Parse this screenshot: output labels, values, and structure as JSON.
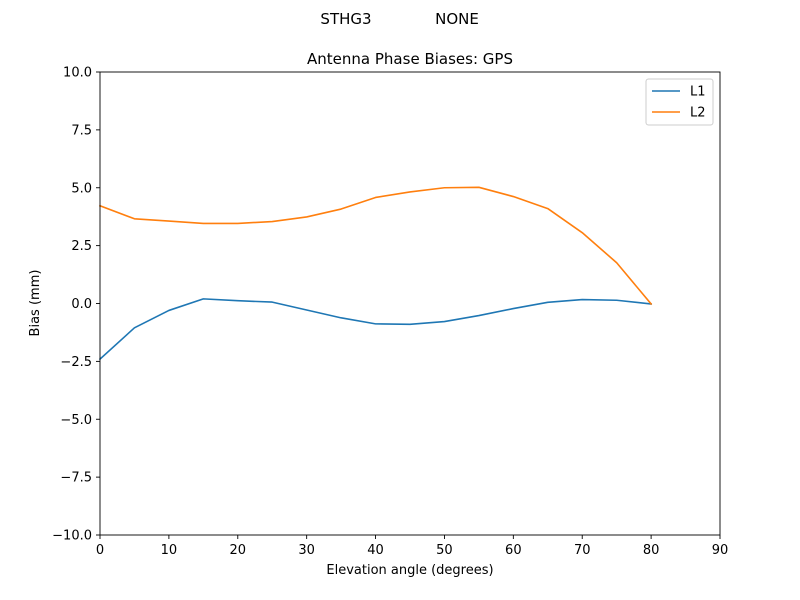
{
  "suptitle": {
    "station": "STHG3",
    "radome": "NONE"
  },
  "chart_data": {
    "type": "line",
    "title": "Antenna Phase Biases: GPS",
    "xlabel": "Elevation angle (degrees)",
    "ylabel": "Bias (mm)",
    "xlim": [
      0,
      90
    ],
    "ylim": [
      -10,
      10
    ],
    "xticks": [
      0,
      10,
      20,
      30,
      40,
      50,
      60,
      70,
      80,
      90
    ],
    "xtick_labels": [
      "0",
      "10",
      "20",
      "30",
      "40",
      "50",
      "60",
      "70",
      "80",
      "90"
    ],
    "yticks": [
      -10,
      -7.5,
      -5,
      -2.5,
      0,
      2.5,
      5,
      7.5,
      10
    ],
    "ytick_labels": [
      "−10.0",
      "−7.5",
      "−5.0",
      "−2.5",
      "0.0",
      "2.5",
      "5.0",
      "7.5",
      "10.0"
    ],
    "grid": false,
    "legend": "top-right",
    "x": [
      0,
      5,
      10,
      15,
      20,
      25,
      30,
      35,
      40,
      45,
      50,
      55,
      60,
      65,
      70,
      75,
      80
    ],
    "series": [
      {
        "name": "L1",
        "color": "#1f77b4",
        "values": [
          -2.4,
          -1.05,
          -0.3,
          0.2,
          0.12,
          0.06,
          -0.28,
          -0.62,
          -0.88,
          -0.9,
          -0.78,
          -0.52,
          -0.22,
          0.05,
          0.17,
          0.14,
          -0.02
        ]
      },
      {
        "name": "L2",
        "color": "#ff7f0e",
        "values": [
          4.22,
          3.66,
          3.56,
          3.46,
          3.46,
          3.54,
          3.74,
          4.08,
          4.58,
          4.82,
          5.0,
          5.02,
          4.62,
          4.1,
          3.06,
          1.76,
          -0.02
        ]
      }
    ]
  }
}
